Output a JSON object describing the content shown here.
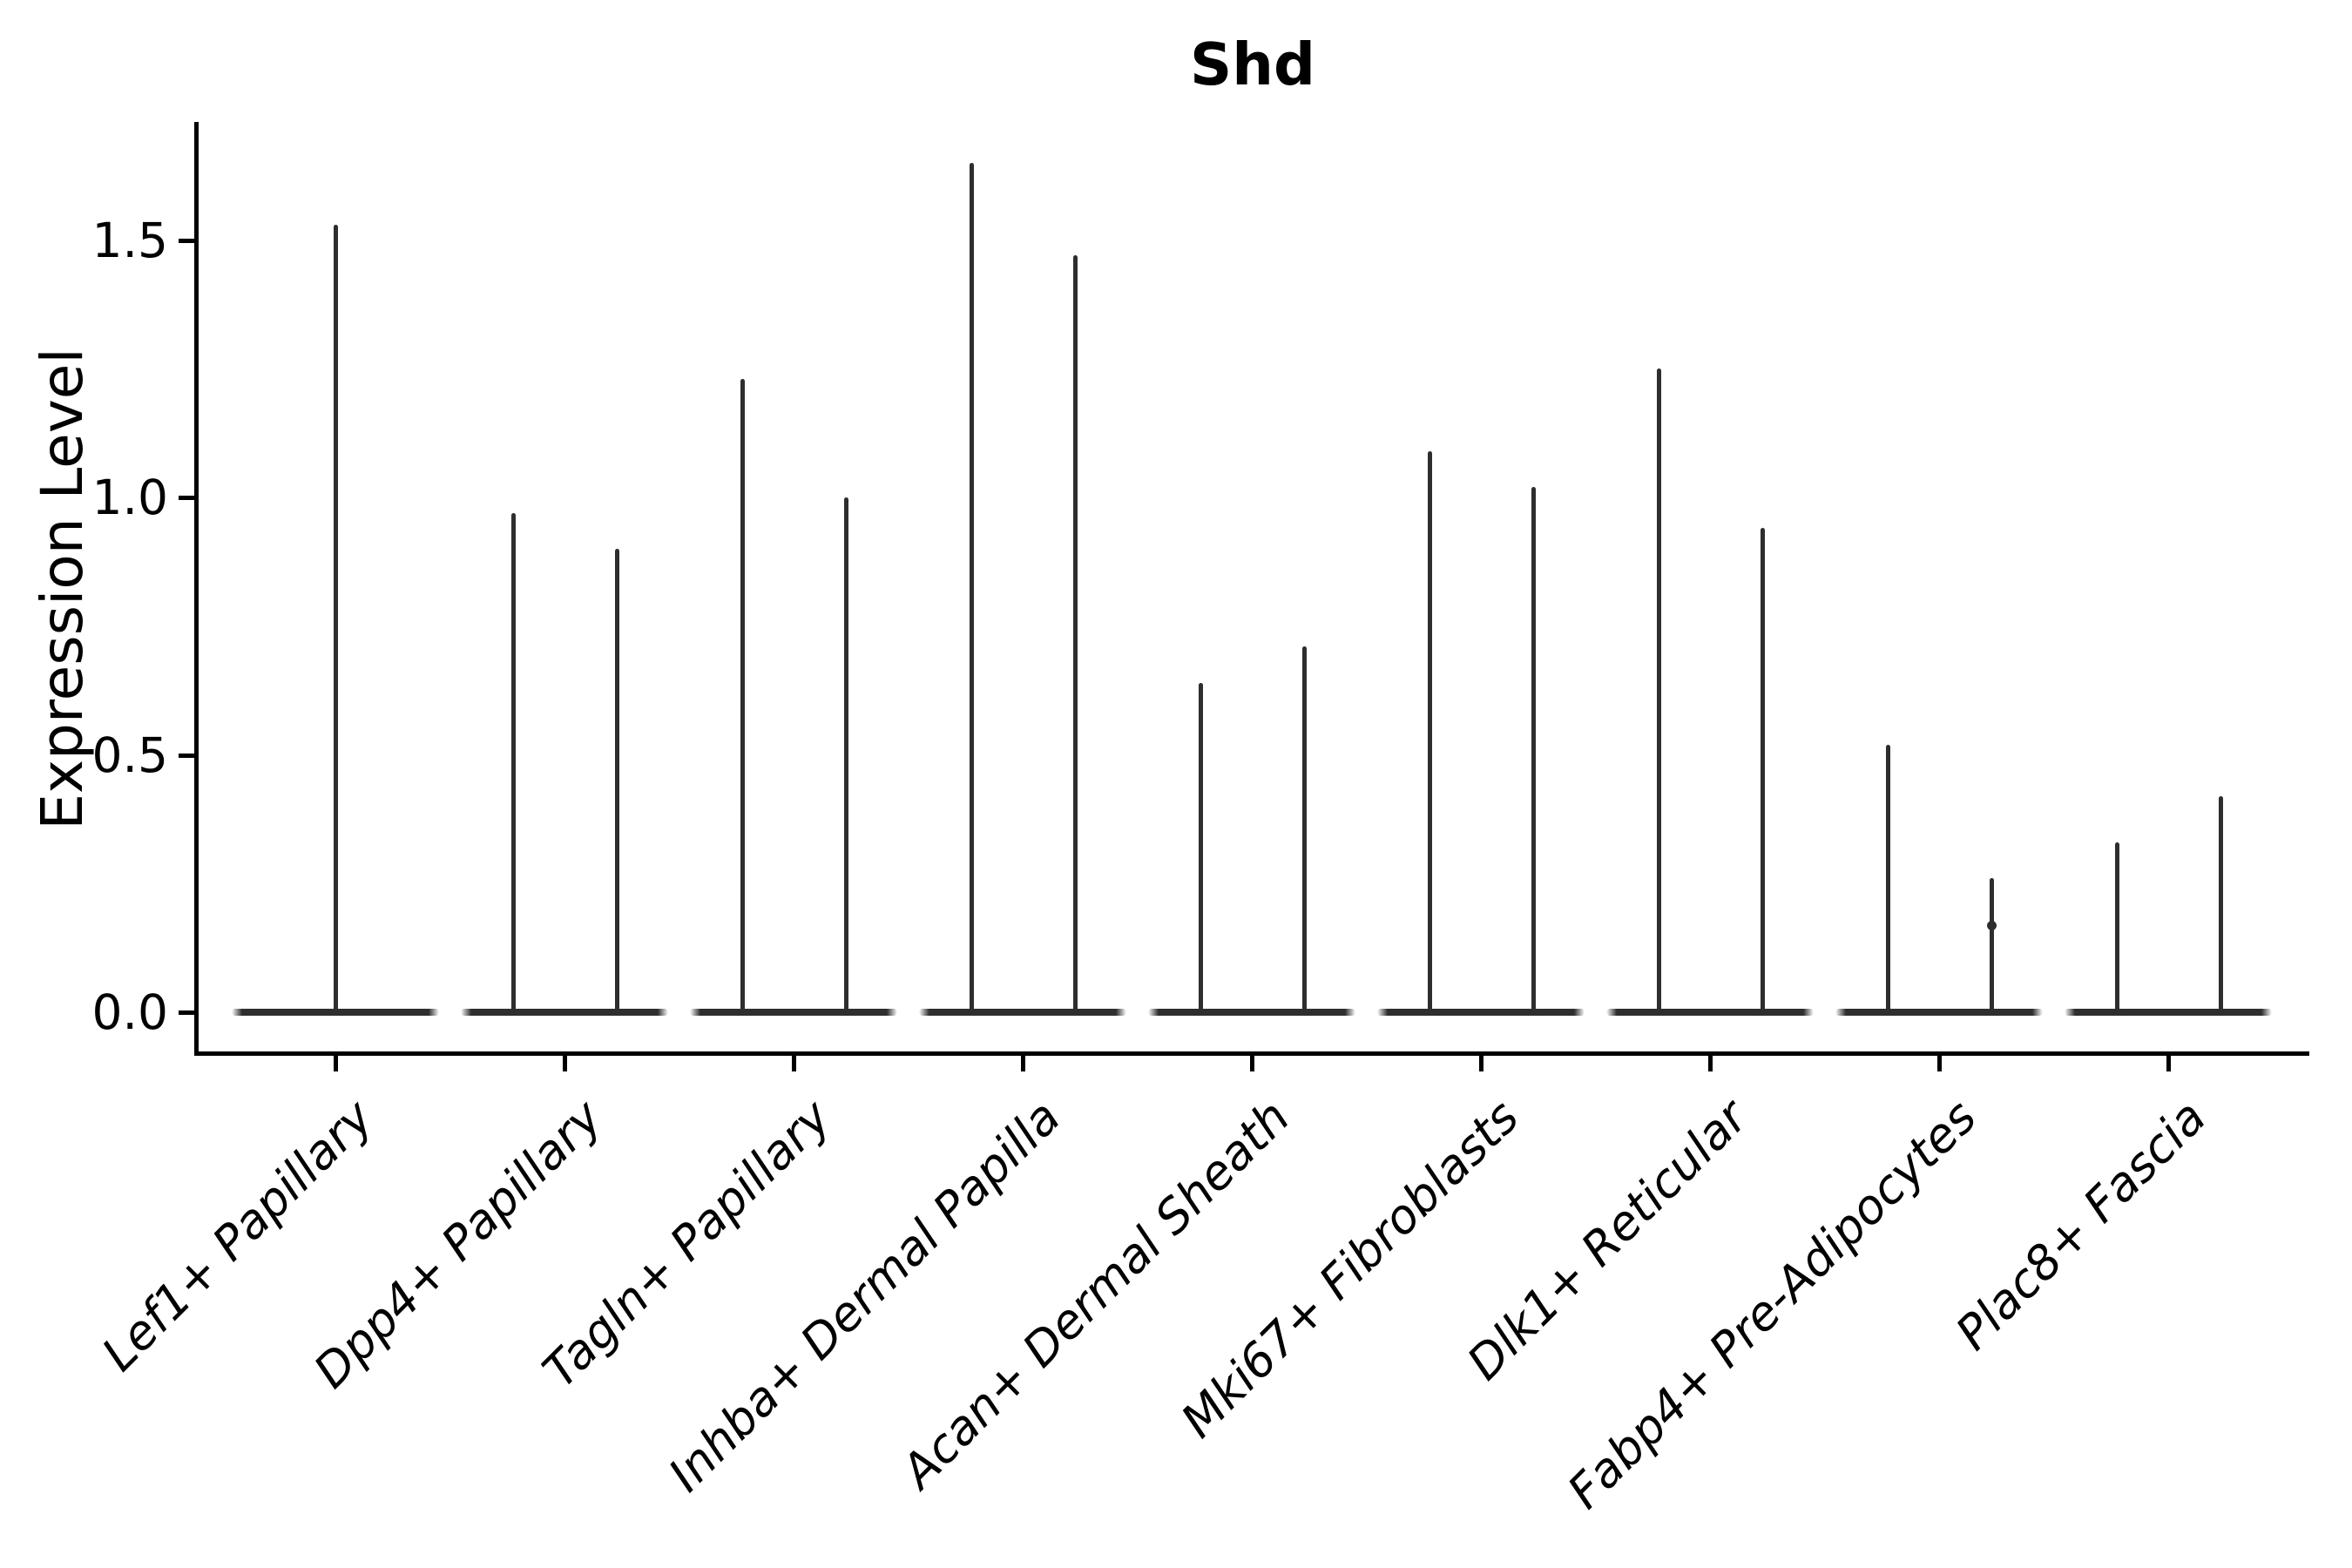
{
  "chart_data": {
    "type": "violin",
    "title": "Shd",
    "ylabel": "Expression Level",
    "xlabel": "",
    "grid": false,
    "legend_position": "none",
    "background": "#ffffff",
    "ylim": [
      -0.08,
      1.73
    ],
    "ytick_values": [
      0.0,
      0.5,
      1.0,
      1.5
    ],
    "ytick_labels": [
      "0.0",
      "0.5",
      "1.0",
      "1.5"
    ],
    "categories": [
      "Lef1+ Papillary",
      "Dpp4+ Papillary",
      "Tagln+ Papillary",
      "Inhba+ Dermal Papilla",
      "Acan+ Dermal Sheath",
      "Mki67+ Fibroblasts",
      "Dlk1+ Reticular",
      "Fabp4+ Pre-Adipocytes",
      "Plac8+ Fascia"
    ],
    "violins": [
      {
        "category": "Lef1+ Papillary",
        "maxima": [
          1.53
        ]
      },
      {
        "category": "Dpp4+ Papillary",
        "maxima": [
          0.97,
          0.9
        ]
      },
      {
        "category": "Tagln+ Papillary",
        "maxima": [
          1.23,
          1.0
        ]
      },
      {
        "category": "Inhba+ Dermal Papilla",
        "maxima": [
          1.65,
          1.47
        ]
      },
      {
        "category": "Acan+ Dermal Sheath",
        "maxima": [
          0.64,
          0.71
        ]
      },
      {
        "category": "Mki67+ Fibroblasts",
        "maxima": [
          1.09,
          1.02
        ]
      },
      {
        "category": "Dlk1+ Reticular",
        "maxima": [
          1.25,
          0.94
        ]
      },
      {
        "category": "Fabp4+ Pre-Adipocytes",
        "maxima": [
          0.52,
          0.26
        ],
        "knots": [
          null,
          0.17
        ]
      },
      {
        "category": "Plac8+ Fascia",
        "maxima": [
          0.33,
          0.42
        ]
      }
    ],
    "colors": {
      "violin": "#2e2e2e",
      "axis": "#000000",
      "text": "#000000"
    }
  }
}
